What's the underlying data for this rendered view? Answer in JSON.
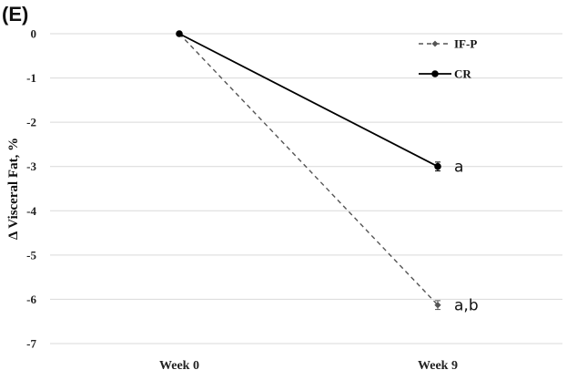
{
  "chart_data": {
    "type": "line",
    "panel_label": "(E)",
    "title": "",
    "xlabel": "",
    "ylabel": "Δ Visceral Fat, %",
    "categories": [
      "Week 0",
      "Week 9"
    ],
    "ylim": [
      -7,
      0
    ],
    "yticks": [
      "0",
      "-1",
      "-2",
      "-3",
      "-4",
      "-5",
      "-6",
      "-7"
    ],
    "grid": true,
    "legend_position": "top-right",
    "series": [
      {
        "name": "IF-P",
        "values": [
          0,
          -6.13
        ],
        "error": [
          0,
          0.1
        ],
        "color": "#555555",
        "dashed": true,
        "marker": "diamond",
        "annotations": [
          "",
          "a,b"
        ]
      },
      {
        "name": "CR",
        "values": [
          0,
          -3.0
        ],
        "error": [
          0,
          0.1
        ],
        "color": "#000000",
        "dashed": false,
        "marker": "circle",
        "annotations": [
          "",
          "a"
        ]
      }
    ]
  }
}
